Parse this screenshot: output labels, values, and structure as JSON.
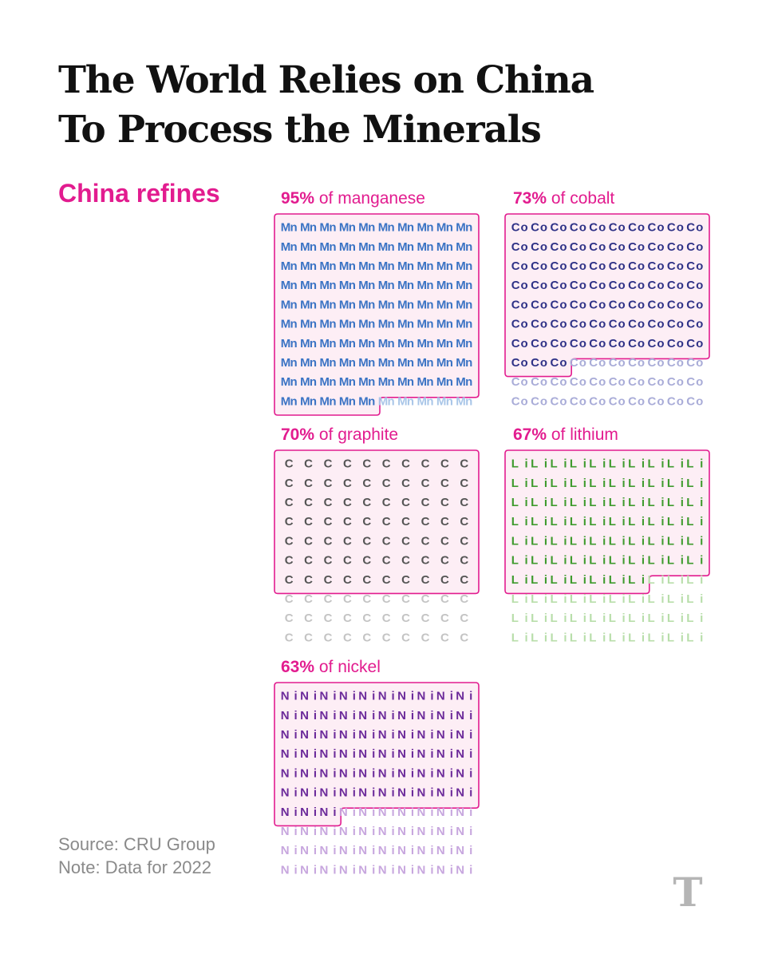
{
  "title_line1": "The World Relies on China",
  "title_line2": "To Process the Minerals",
  "subtitle": "China refines",
  "source": "Source: CRU Group",
  "note": "Note: Data for 2022",
  "logo_letter": "T",
  "colors": {
    "accent": "#e21c8f",
    "box_fill": "#fdeef5"
  },
  "chart_data": [
    {
      "type": "waffle",
      "name": "manganese",
      "symbol": "Mn",
      "percent": "95%",
      "label_rest": " of manganese",
      "value": 95,
      "total": 100,
      "columns": 10,
      "color": "#3a73c4",
      "light_color": "#a9c6e8"
    },
    {
      "type": "waffle",
      "name": "cobalt",
      "symbol": "Co",
      "percent": "73%",
      "label_rest": " of cobalt",
      "value": 73,
      "total": 100,
      "columns": 10,
      "color": "#2f3287",
      "light_color": "#a9acd8"
    },
    {
      "type": "waffle",
      "name": "graphite",
      "symbol": "C",
      "percent": "70%",
      "label_rest": " of graphite",
      "value": 70,
      "total": 100,
      "columns": 10,
      "color": "#555555",
      "light_color": "#c4c4c4"
    },
    {
      "type": "waffle",
      "name": "lithium",
      "symbol": "Li",
      "percent": "67%",
      "label_rest": " of lithium",
      "value": 67,
      "total": 100,
      "columns": 10,
      "color": "#3f9b2e",
      "light_color": "#b8deaa"
    },
    {
      "type": "waffle",
      "name": "nickel",
      "symbol": "Ni",
      "percent": "63%",
      "label_rest": " of nickel",
      "value": 63,
      "total": 100,
      "columns": 10,
      "color": "#6b2a9a",
      "light_color": "#c7a6de"
    }
  ]
}
